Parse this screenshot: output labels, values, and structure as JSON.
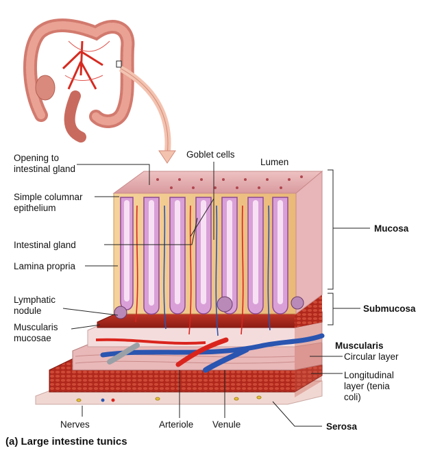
{
  "caption": "(a) Large intestine tunics",
  "labels": {
    "opening_to_gland": [
      "Opening to",
      "intestinal gland"
    ],
    "simple_columnar": [
      "Simple columnar",
      "epithelium"
    ],
    "intestinal_gland": "Intestinal gland",
    "lamina_propria": "Lamina propria",
    "lymphatic_nodule": [
      "Lymphatic",
      "nodule"
    ],
    "muscularis_mucosae": [
      "Muscularis",
      "mucosae"
    ],
    "goblet_cells": "Goblet cells",
    "lumen": "Lumen",
    "mucosa": "Mucosa",
    "submucosa": "Submucosa",
    "muscularis": "Muscularis",
    "circular_layer": "Circular layer",
    "longitudinal_layer": [
      "Longitudinal",
      "layer (tenia",
      "coli)"
    ],
    "nerves": "Nerves",
    "arteriole": "Arteriole",
    "venule": "Venule",
    "serosa": "Serosa"
  },
  "colors": {
    "mucosa_top": "#e6b1b3",
    "gland": "#c88ac8",
    "lamina": "#f2c98a",
    "muscle": "#b4281c",
    "submucosa": "#f3d6d6",
    "artery": "#d9241d",
    "vein": "#2a55b0",
    "nerve": "#e8c23a"
  }
}
